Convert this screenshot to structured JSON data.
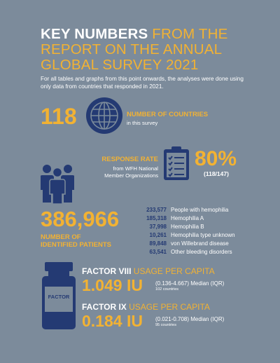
{
  "title": {
    "line1_white": "KEY NUMBERS",
    "line1_yellow": " FROM THE",
    "line2": "REPORT ON THE ANNUAL",
    "line3": "GLOBAL SURVEY 2021"
  },
  "subtitle": "For all tables and graphs from this point onwards, the analyses were done using only data from countries that responded in 2021.",
  "countries": {
    "value": "118",
    "label": "NUMBER OF COUNTRIES",
    "sublabel": "in this survey",
    "icon": "globe-icon"
  },
  "response": {
    "label": "RESPONSE RATE",
    "sub1": "from WFH National",
    "sub2": "Member Organizations",
    "value": "80%",
    "detail": "(118/147)",
    "icon": "clipboard-checklist-icon"
  },
  "patients": {
    "value": "386,966",
    "label1": "NUMBER OF",
    "label2": "IDENTIFIED PATIENTS",
    "icon": "people-group-icon",
    "breakdown": [
      {
        "n": "233,577",
        "t": "People with hemophilia"
      },
      {
        "n": "185,318",
        "t": "Hemophilia A"
      },
      {
        "n": "37,998",
        "t": "Hemophilia B"
      },
      {
        "n": "10,261",
        "t": "Hemophilia type unknown"
      },
      {
        "n": "89,848",
        "t": "von Willebrand disease"
      },
      {
        "n": "63,541",
        "t": "Other bleeding disorders"
      }
    ]
  },
  "vial": {
    "label": "FACTOR",
    "icon": "factor-vial-icon"
  },
  "factor8": {
    "head_white": "FACTOR VIII",
    "head_yellow": " USAGE PER CAPITA",
    "value": "1.049 IU",
    "range": "(0.136-4.667) Median (IQR)",
    "countries": "102 countries"
  },
  "factor9": {
    "head_white": "FACTOR IX",
    "head_yellow": " USAGE PER CAPITA",
    "value": "0.184 IU",
    "range": "(0.021-0.708) Median (IQR)",
    "countries": "95 countries"
  },
  "colors": {
    "background": "#7c8b9b",
    "accent": "#f2b233",
    "navy": "#243a73"
  }
}
